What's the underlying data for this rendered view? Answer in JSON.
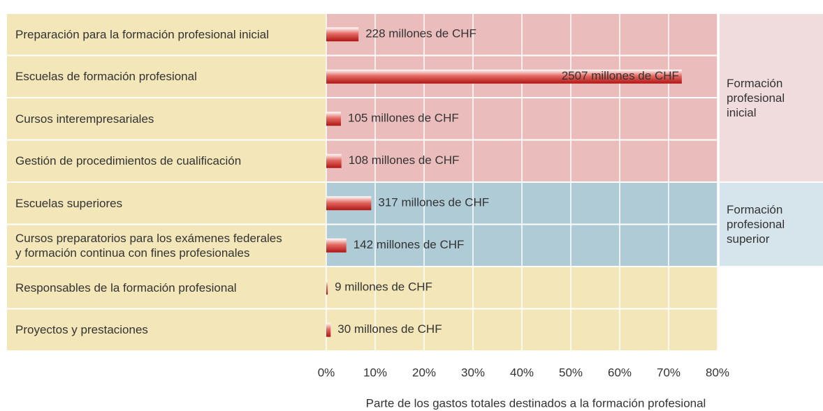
{
  "chart_data": {
    "type": "bar",
    "orientation": "horizontal",
    "categories": [
      "Preparación para la formación profesional inicial",
      "Escuelas de formación profesional",
      "Cursos interempresariales",
      "Gestión de procedimientos de cualificación",
      "Escuelas superiores",
      "Cursos preparatorios para los exámenes federales\ny formación continua con fines profesionales",
      "Responsables de la formación profesional",
      "Proyectos y prestaciones"
    ],
    "values": [
      6.6,
      72.7,
      3.0,
      3.1,
      9.2,
      4.1,
      0.3,
      0.9
    ],
    "annotations": [
      "228 millones de CHF",
      "2507 millones de CHF",
      "105 millones de CHF",
      "108 millones de CHF",
      "317 millones de CHF",
      "142 millones de CHF",
      "9 millones de CHF",
      "30 millones de CHF"
    ],
    "color": "#c8201e",
    "background_color": "#f3e6b8",
    "groups": [
      {
        "label": "Formación\nprofesional\ninicial",
        "rows": [
          0,
          1,
          2,
          3
        ],
        "color": "#ebbcbc",
        "label_color": "#f0dcdc"
      },
      {
        "label": "Formación\nprofesional\nsuperior",
        "rows": [
          4,
          5
        ],
        "color": "#aecbd6",
        "label_color": "#d6e4ec"
      }
    ],
    "xlim": [
      0,
      80
    ],
    "xticks": [
      {
        "value": 0,
        "label": "0%"
      },
      {
        "value": 10,
        "label": "10%"
      },
      {
        "value": 20,
        "label": "20%"
      },
      {
        "value": 30,
        "label": "30%"
      },
      {
        "value": 40,
        "label": "40%"
      },
      {
        "value": 50,
        "label": "50%"
      },
      {
        "value": 60,
        "label": "60%"
      },
      {
        "value": 70,
        "label": "70%"
      },
      {
        "value": 80,
        "label": "80%"
      }
    ],
    "x_label": "Parte de los gastos totales destinados a la formación profesional",
    "grid": true
  }
}
